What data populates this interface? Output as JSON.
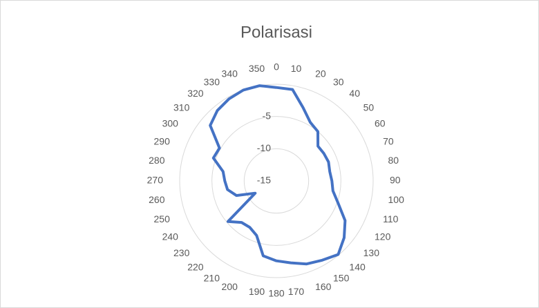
{
  "chart_data": {
    "type": "radar",
    "title": "Polarisasi",
    "categories": [
      "0",
      "10",
      "20",
      "30",
      "40",
      "50",
      "60",
      "70",
      "80",
      "90",
      "100",
      "110",
      "120",
      "130",
      "140",
      "150",
      "160",
      "170",
      "180",
      "190",
      "200",
      "210",
      "220",
      "230",
      "240",
      "250",
      "260",
      "270",
      "280",
      "290",
      "300",
      "310",
      "320",
      "330",
      "340",
      "350"
    ],
    "series": [
      {
        "name": "Polarisasi",
        "color": "#4472c4",
        "values": [
          -0.5,
          -0.6,
          -2.9,
          -4.5,
          -5,
          -6.6,
          -6.5,
          -6.4,
          -6.6,
          -6.4,
          -6.1,
          -4.8,
          -2.7,
          -1.3,
          -0.1,
          -0.8,
          -1.3,
          -2.1,
          -2.6,
          -3.2,
          -6,
          -6.7,
          -6.6,
          -5.2,
          -11.2,
          -8.4,
          -7.3,
          -7,
          -6.6,
          -4.6,
          -4.8,
          -1.6,
          -0.75,
          -0.3,
          0,
          0
        ]
      }
    ],
    "ylim": [
      -15,
      0
    ],
    "yticks": [
      -15,
      -10,
      -5
    ],
    "grid": true
  }
}
